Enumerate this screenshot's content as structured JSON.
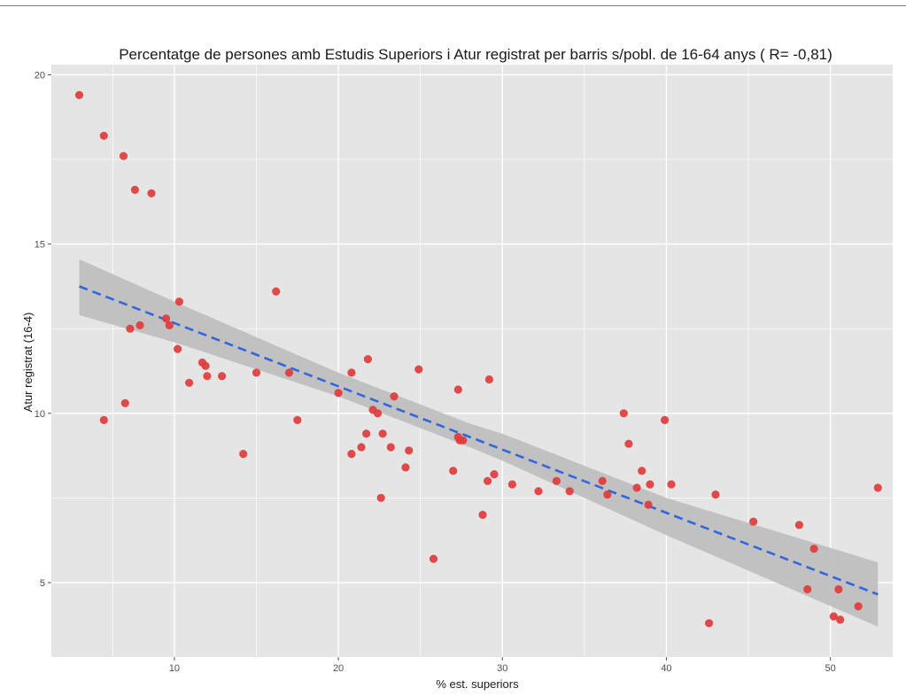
{
  "chart_data": {
    "type": "scatter",
    "title": "Percentatge de persones amb Estudis Superiors i Atur registrat per barris s/pobl. de 16-64 anys ( R= -0,81)",
    "xlabel": "% est. superiors",
    "ylabel": "Atur registrat (16-4)",
    "xlim": [
      2.5,
      53.8
    ],
    "ylim": [
      2.8,
      20.3
    ],
    "xticks": [
      10,
      20,
      30,
      40,
      50
    ],
    "yticks": [
      5,
      10,
      15,
      20
    ],
    "grid": true,
    "legend": "none",
    "colors": {
      "points": "#e03c3c",
      "trend": "#3366dd",
      "band": "#bdbdbd",
      "panel": "#e5e5e5",
      "grid": "#ffffff"
    },
    "series": [
      {
        "kind": "points",
        "x": [
          4.2,
          5.7,
          6.9,
          7.6,
          8.6,
          5.7,
          7.0,
          7.3,
          7.9,
          9.5,
          9.7,
          10.2,
          10.3,
          10.9,
          11.7,
          11.9,
          12.0,
          12.9,
          14.2,
          15.0,
          16.2,
          17.0,
          17.5,
          20.0,
          20.8,
          20.8,
          21.4,
          21.7,
          21.8,
          22.1,
          22.4,
          22.6,
          22.7,
          23.2,
          23.4,
          24.1,
          24.3,
          24.9,
          25.8,
          27.0,
          27.3,
          27.3,
          27.4,
          27.6,
          28.8,
          29.1,
          29.2,
          29.5,
          30.6,
          32.2,
          33.3,
          34.1,
          36.1,
          36.4,
          37.4,
          37.7,
          38.2,
          38.5,
          38.9,
          39.0,
          39.9,
          40.3,
          42.6,
          43.0,
          45.3,
          48.1,
          48.6,
          49.0,
          50.2,
          50.5,
          50.6,
          51.7,
          52.9
        ],
        "y": [
          19.4,
          18.2,
          17.6,
          16.6,
          16.5,
          9.8,
          10.3,
          12.5,
          12.6,
          12.8,
          12.6,
          11.9,
          13.3,
          10.9,
          11.5,
          11.4,
          11.1,
          11.1,
          8.8,
          11.2,
          13.6,
          11.2,
          9.8,
          10.6,
          8.8,
          11.2,
          9.0,
          9.4,
          11.6,
          10.1,
          10.0,
          7.5,
          9.4,
          9.0,
          10.5,
          8.4,
          8.9,
          11.3,
          5.7,
          8.3,
          9.3,
          10.7,
          9.2,
          9.2,
          7.0,
          8.0,
          11.0,
          8.2,
          7.9,
          7.7,
          8.0,
          7.7,
          8.0,
          7.6,
          10.0,
          9.1,
          7.8,
          8.3,
          7.3,
          7.9,
          9.8,
          7.9,
          3.8,
          7.6,
          6.8,
          6.7,
          4.8,
          6.0,
          4.0,
          4.8,
          3.9,
          4.3,
          7.8
        ]
      },
      {
        "kind": "trend",
        "x": [
          4.2,
          52.9
        ],
        "y": [
          13.75,
          4.65
        ]
      },
      {
        "kind": "confidence-band",
        "x": [
          4.2,
          10,
          20,
          28,
          30,
          40,
          52.9
        ],
        "lower": [
          12.9,
          12.1,
          10.5,
          9.0,
          8.6,
          6.4,
          3.7
        ],
        "upper": [
          14.55,
          13.3,
          11.2,
          9.7,
          9.4,
          7.5,
          5.6
        ]
      }
    ]
  }
}
